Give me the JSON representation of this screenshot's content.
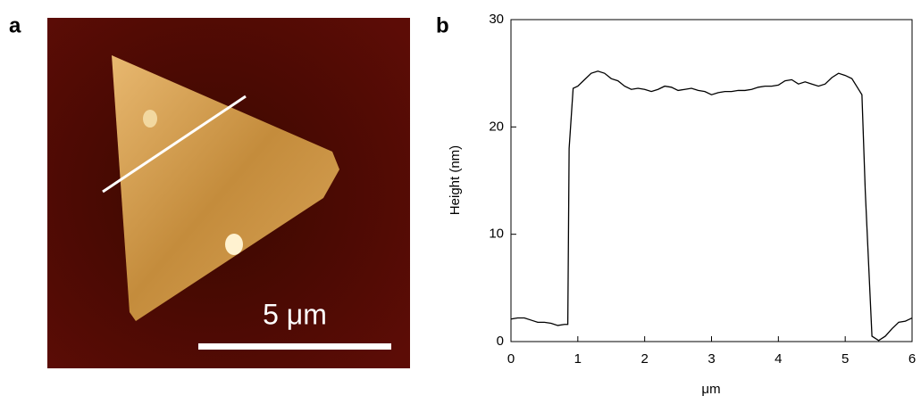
{
  "panel_a": {
    "label": "a",
    "scale_bar_text": "5 μm"
  },
  "chart_data": {
    "type": "line",
    "panel_label": "b",
    "xlabel": "μm",
    "ylabel": "Height (nm)",
    "x": [
      0,
      0.1,
      0.2,
      0.3,
      0.4,
      0.5,
      0.6,
      0.7,
      0.8,
      0.85,
      0.87,
      0.93,
      1.0,
      1.1,
      1.2,
      1.3,
      1.4,
      1.5,
      1.6,
      1.7,
      1.8,
      1.9,
      2.0,
      2.1,
      2.2,
      2.3,
      2.4,
      2.5,
      2.6,
      2.7,
      2.8,
      2.9,
      3.0,
      3.1,
      3.2,
      3.3,
      3.4,
      3.5,
      3.6,
      3.7,
      3.8,
      3.9,
      4.0,
      4.1,
      4.2,
      4.3,
      4.4,
      4.5,
      4.6,
      4.7,
      4.8,
      4.9,
      5.0,
      5.1,
      5.2,
      5.25,
      5.3,
      5.4,
      5.5,
      5.6,
      5.7,
      5.8,
      5.9,
      6.0
    ],
    "values": [
      2.1,
      2.2,
      2.2,
      2.0,
      1.8,
      1.8,
      1.7,
      1.5,
      1.6,
      1.6,
      18,
      23.6,
      23.8,
      24.4,
      25.0,
      25.2,
      25.0,
      24.5,
      24.3,
      23.8,
      23.5,
      23.6,
      23.5,
      23.3,
      23.5,
      23.8,
      23.7,
      23.4,
      23.5,
      23.6,
      23.4,
      23.3,
      23.0,
      23.2,
      23.3,
      23.3,
      23.4,
      23.4,
      23.5,
      23.7,
      23.8,
      23.8,
      23.9,
      24.3,
      24.4,
      24.0,
      24.2,
      24.0,
      23.8,
      24.0,
      24.6,
      25.0,
      24.8,
      24.5,
      23.5,
      23.0,
      14,
      0.5,
      0.1,
      0.5,
      1.2,
      1.8,
      1.9,
      2.2
    ],
    "color": "#000000",
    "xlim": [
      0,
      6
    ],
    "ylim": [
      0,
      30
    ],
    "xticks": [
      0,
      1,
      2,
      3,
      4,
      5,
      6
    ],
    "yticks": [
      0,
      10,
      20,
      30
    ]
  }
}
